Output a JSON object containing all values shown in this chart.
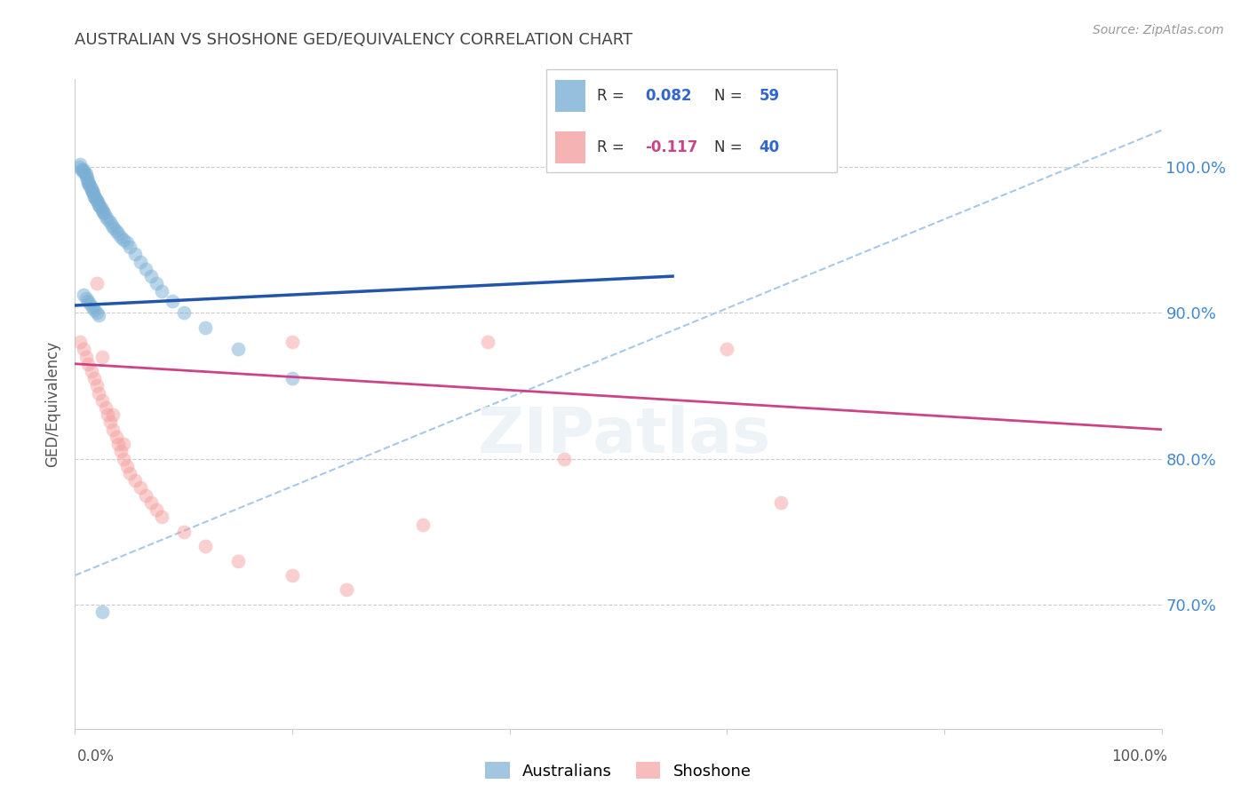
{
  "title": "AUSTRALIAN VS SHOSHONE GED/EQUIVALENCY CORRELATION CHART",
  "source": "Source: ZipAtlas.com",
  "ylabel": "GED/Equivalency",
  "ytick_values": [
    0.7,
    0.8,
    0.9,
    1.0
  ],
  "xlim": [
    0.0,
    1.0
  ],
  "ylim": [
    0.615,
    1.06
  ],
  "r_blue": 0.082,
  "n_blue": 59,
  "r_pink": -0.117,
  "n_pink": 40,
  "blue_scatter_color": "#7bafd4",
  "pink_scatter_color": "#f4a0a0",
  "blue_line_color": "#2255aa",
  "pink_line_color": "#cc4488",
  "dashed_line_color": "#a8c8e8",
  "grid_color": "#cccccc",
  "title_color": "#444444",
  "right_tick_color": "#4488cc",
  "legend_r_color": "#3366cc",
  "legend_n_color": "#3366cc",
  "blue_trend_x0": 0.0,
  "blue_trend_y0": 0.905,
  "blue_trend_x1": 0.55,
  "blue_trend_y1": 0.925,
  "dashed_trend_x0": 0.0,
  "dashed_trend_y0": 0.72,
  "dashed_trend_x1": 1.0,
  "dashed_trend_y1": 1.025,
  "pink_trend_x0": 0.0,
  "pink_trend_y0": 0.865,
  "pink_trend_x1": 1.0,
  "pink_trend_y1": 0.82,
  "australians_x": [
    0.004,
    0.005,
    0.006,
    0.007,
    0.008,
    0.009,
    0.01,
    0.01,
    0.011,
    0.012,
    0.012,
    0.013,
    0.014,
    0.015,
    0.015,
    0.016,
    0.017,
    0.018,
    0.018,
    0.019,
    0.02,
    0.021,
    0.022,
    0.023,
    0.024,
    0.025,
    0.026,
    0.027,
    0.028,
    0.03,
    0.032,
    0.034,
    0.036,
    0.038,
    0.04,
    0.042,
    0.045,
    0.048,
    0.05,
    0.055,
    0.06,
    0.065,
    0.07,
    0.075,
    0.08,
    0.09,
    0.1,
    0.12,
    0.15,
    0.2,
    0.008,
    0.01,
    0.012,
    0.014,
    0.016,
    0.018,
    0.02,
    0.022,
    0.025
  ],
  "australians_y": [
    1.0,
    1.002,
    0.998,
    0.997,
    0.998,
    0.996,
    0.995,
    0.993,
    0.992,
    0.99,
    0.989,
    0.988,
    0.987,
    0.985,
    0.984,
    0.983,
    0.982,
    0.98,
    0.979,
    0.978,
    0.977,
    0.976,
    0.974,
    0.973,
    0.972,
    0.97,
    0.969,
    0.968,
    0.966,
    0.964,
    0.962,
    0.96,
    0.958,
    0.956,
    0.954,
    0.952,
    0.95,
    0.948,
    0.945,
    0.94,
    0.935,
    0.93,
    0.925,
    0.92,
    0.915,
    0.908,
    0.9,
    0.89,
    0.875,
    0.855,
    0.912,
    0.91,
    0.908,
    0.906,
    0.904,
    0.902,
    0.9,
    0.898,
    0.695
  ],
  "shoshone_x": [
    0.005,
    0.008,
    0.01,
    0.012,
    0.015,
    0.018,
    0.02,
    0.022,
    0.025,
    0.028,
    0.03,
    0.032,
    0.035,
    0.038,
    0.04,
    0.042,
    0.045,
    0.048,
    0.05,
    0.055,
    0.06,
    0.065,
    0.07,
    0.075,
    0.08,
    0.1,
    0.12,
    0.15,
    0.2,
    0.25,
    0.02,
    0.025,
    0.035,
    0.045,
    0.2,
    0.38,
    0.6,
    0.65,
    0.45,
    0.32
  ],
  "shoshone_y": [
    0.88,
    0.875,
    0.87,
    0.865,
    0.86,
    0.855,
    0.85,
    0.845,
    0.84,
    0.835,
    0.83,
    0.825,
    0.82,
    0.815,
    0.81,
    0.805,
    0.8,
    0.795,
    0.79,
    0.785,
    0.78,
    0.775,
    0.77,
    0.765,
    0.76,
    0.75,
    0.74,
    0.73,
    0.72,
    0.71,
    0.92,
    0.87,
    0.83,
    0.81,
    0.88,
    0.88,
    0.875,
    0.77,
    0.8,
    0.755
  ]
}
